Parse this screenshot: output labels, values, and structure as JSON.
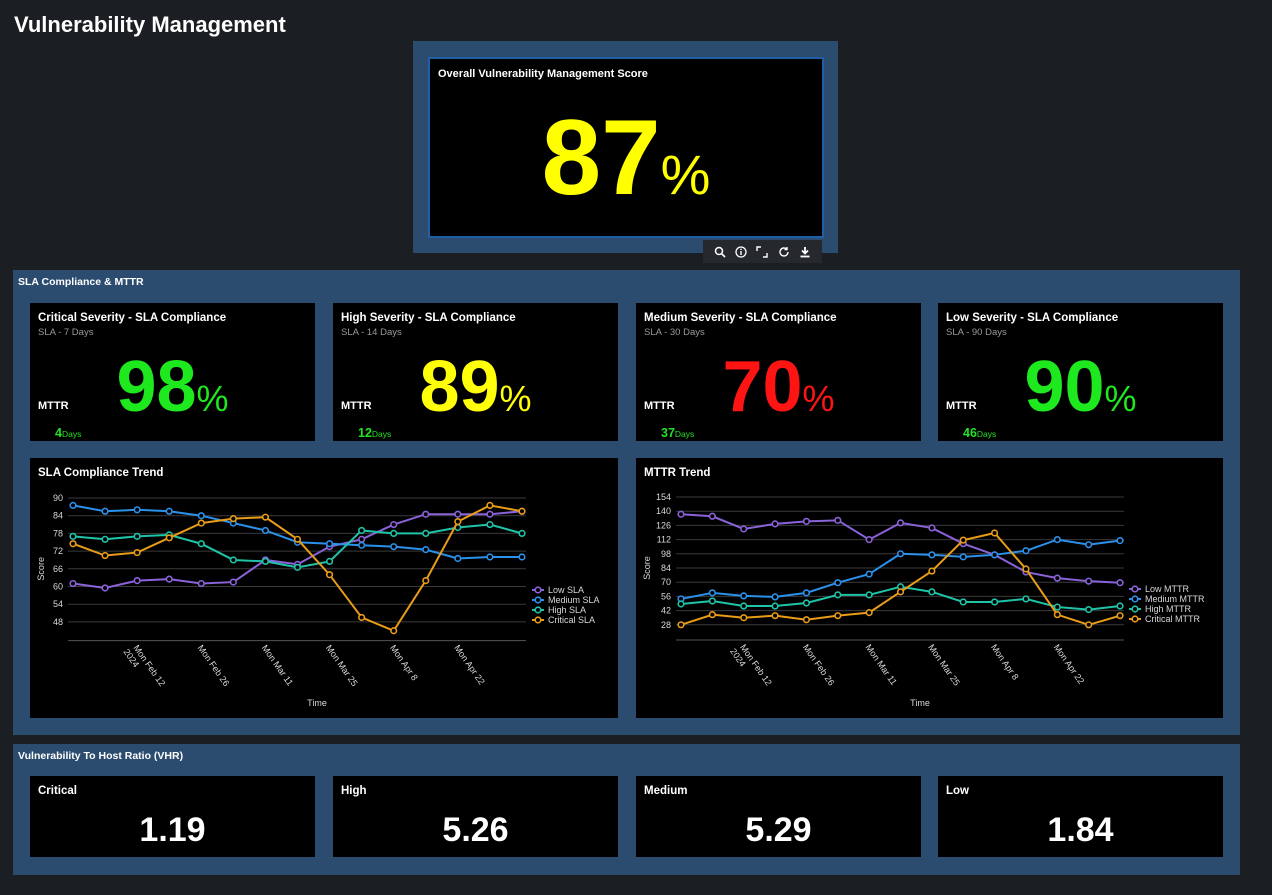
{
  "header": {
    "title": "Vulnerability Management"
  },
  "overall_score": {
    "title": "Overall Vulnerability Management Score",
    "value": 87,
    "unit": "%",
    "color": "#ffff00"
  },
  "sla_section": {
    "title": "SLA Compliance & MTTR",
    "cards": [
      {
        "title": "Critical Severity - SLA Compliance",
        "subtitle": "SLA - 7 Days",
        "value": 98,
        "unit": "%",
        "color": "#1ee81e",
        "mttr_label": "MTTR",
        "mttr_value": 4,
        "mttr_unit": "Days"
      },
      {
        "title": "High Severity - SLA Compliance",
        "subtitle": "SLA - 14 Days",
        "value": 89,
        "unit": "%",
        "color": "#ffff0a",
        "mttr_label": "MTTR",
        "mttr_value": 12,
        "mttr_unit": "Days"
      },
      {
        "title": "Medium Severity - SLA Compliance",
        "subtitle": "SLA - 30 Days",
        "value": 70,
        "unit": "%",
        "color": "#ff1414",
        "mttr_label": "MTTR",
        "mttr_value": 37,
        "mttr_unit": "Days"
      },
      {
        "title": "Low Severity - SLA Compliance",
        "subtitle": "SLA - 90 Days",
        "value": 90,
        "unit": "%",
        "color": "#1ee81e",
        "mttr_label": "MTTR",
        "mttr_value": 46,
        "mttr_unit": "Days"
      }
    ]
  },
  "chart_data": [
    {
      "type": "line",
      "title": "SLA Compliance Trend",
      "x_label": "Time",
      "y_label": "Score",
      "categories": [
        null,
        null,
        "Mon Feb 12",
        null,
        "Mon Feb 26",
        null,
        "Mon Mar 11",
        null,
        "Mon Mar 25",
        null,
        "Mon Apr 8",
        null,
        "Mon Apr 22",
        null,
        null
      ],
      "year_label": "2024",
      "series": [
        {
          "name": "Low SLA",
          "color": "#8b63d9",
          "values": [
            61,
            59.5,
            62,
            62.5,
            61,
            61.5,
            69,
            67.5,
            73.5,
            76,
            81,
            84.5,
            84.5,
            84.5,
            85.5
          ]
        },
        {
          "name": "Medium SLA",
          "color": "#2b91ea",
          "values": [
            87.5,
            85.5,
            86,
            85.5,
            84,
            81.5,
            79,
            75,
            74.5,
            74,
            73.5,
            72.5,
            69.5,
            70,
            70
          ]
        },
        {
          "name": "High SLA",
          "color": "#1fc4a8",
          "values": [
            77,
            76,
            77,
            77.5,
            74.5,
            69,
            68.5,
            66.5,
            68.5,
            79,
            78,
            78,
            80,
            81,
            78
          ]
        },
        {
          "name": "Critical SLA",
          "color": "#e89c18",
          "values": [
            74.5,
            70.5,
            71.5,
            76.5,
            81.5,
            83,
            83.5,
            76,
            64,
            49.5,
            45,
            62,
            82,
            87.5,
            85.5
          ]
        }
      ],
      "ylim": [
        42,
        90
      ],
      "yticks": [
        48,
        54,
        60,
        66,
        72,
        78,
        84,
        90
      ],
      "grid": true,
      "legend": "right"
    },
    {
      "type": "line",
      "title": "MTTR Trend",
      "x_label": "Time",
      "y_label": "Score",
      "categories": [
        null,
        null,
        "Mon Feb 12",
        null,
        "Mon Feb 26",
        null,
        "Mon Mar 11",
        null,
        "Mon Mar 25",
        null,
        "Mon Apr 8",
        null,
        "Mon Apr 22",
        null,
        null
      ],
      "year_label": "2024",
      "series": [
        {
          "name": "Low MTTR",
          "color": "#8b63d9",
          "values": [
            137,
            135,
            122.5,
            127.5,
            130,
            131,
            112,
            128.5,
            123.5,
            108,
            97,
            80,
            74,
            71,
            69.5
          ]
        },
        {
          "name": "Medium MTTR",
          "color": "#2b91ea",
          "values": [
            53.5,
            59.5,
            56.5,
            55.5,
            59.5,
            69.5,
            78,
            98,
            97,
            95,
            97,
            101,
            112,
            107,
            111
          ]
        },
        {
          "name": "High MTTR",
          "color": "#1fc4a8",
          "values": [
            48.5,
            51.5,
            46.5,
            46.5,
            49.5,
            57.5,
            57.5,
            65.5,
            60.5,
            50.5,
            50.5,
            53.5,
            45.5,
            43,
            46.5
          ]
        },
        {
          "name": "Critical MTTR",
          "color": "#e89c18",
          "values": [
            28,
            38,
            35,
            37,
            33,
            37,
            40,
            60.5,
            81,
            111.5,
            118.5,
            83,
            38,
            28,
            37
          ]
        }
      ],
      "ylim": [
        14,
        154
      ],
      "yticks": [
        28,
        42,
        56,
        70,
        84,
        98,
        112,
        126,
        140,
        154
      ],
      "grid": true,
      "legend": "right"
    }
  ],
  "vhr_section": {
    "title": "Vulnerability To Host Ratio (VHR)",
    "cards": [
      {
        "label": "Critical",
        "value": 1.19
      },
      {
        "label": "High",
        "value": 5.26
      },
      {
        "label": "Medium",
        "value": 5.29
      },
      {
        "label": "Low",
        "value": 1.84
      }
    ]
  }
}
